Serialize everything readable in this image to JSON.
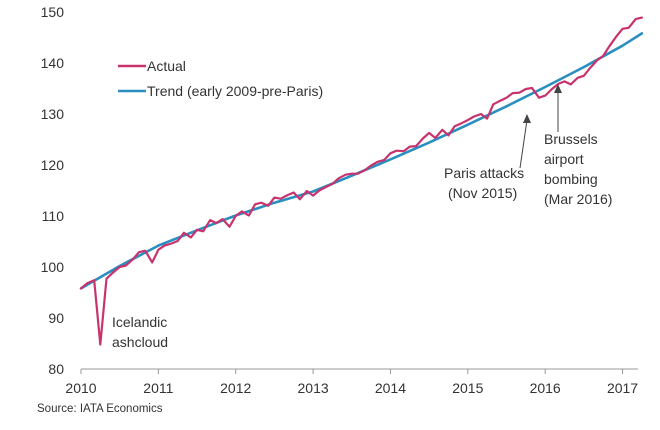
{
  "chart_data": {
    "type": "line",
    "title": "",
    "xlabel": "",
    "ylabel": "",
    "xlim": [
      2010,
      2017.2
    ],
    "ylim": [
      80,
      150
    ],
    "x_ticks": [
      "2010",
      "2011",
      "2012",
      "2013",
      "2014",
      "2015",
      "2016",
      "2017"
    ],
    "y_ticks": [
      "80",
      "90",
      "100",
      "110",
      "120",
      "130",
      "140",
      "150"
    ],
    "grid": false,
    "legend": {
      "placement": "top-left"
    },
    "series": [
      {
        "name": "Actual",
        "color": "#c8336e",
        "points": [
          [
            2010.0,
            95.8
          ],
          [
            2010.08,
            96.8
          ],
          [
            2010.17,
            97.4
          ],
          [
            2010.25,
            84.8
          ],
          [
            2010.33,
            97.7
          ],
          [
            2010.42,
            99.0
          ],
          [
            2010.5,
            100.0
          ],
          [
            2010.58,
            100.3
          ],
          [
            2010.67,
            101.5
          ],
          [
            2010.75,
            102.9
          ],
          [
            2010.83,
            103.2
          ],
          [
            2010.92,
            100.9
          ],
          [
            2011.0,
            103.4
          ],
          [
            2011.08,
            104.2
          ],
          [
            2011.17,
            104.6
          ],
          [
            2011.25,
            105.1
          ],
          [
            2011.33,
            106.7
          ],
          [
            2011.42,
            105.8
          ],
          [
            2011.5,
            107.3
          ],
          [
            2011.58,
            107.0
          ],
          [
            2011.67,
            109.2
          ],
          [
            2011.75,
            108.6
          ],
          [
            2011.83,
            109.4
          ],
          [
            2011.92,
            107.9
          ],
          [
            2012.0,
            110.0
          ],
          [
            2012.08,
            110.9
          ],
          [
            2012.17,
            110.1
          ],
          [
            2012.25,
            112.3
          ],
          [
            2012.33,
            112.6
          ],
          [
            2012.42,
            112.0
          ],
          [
            2012.5,
            113.6
          ],
          [
            2012.58,
            113.4
          ],
          [
            2012.67,
            114.1
          ],
          [
            2012.75,
            114.6
          ],
          [
            2012.83,
            113.3
          ],
          [
            2012.92,
            114.9
          ],
          [
            2013.0,
            114.0
          ],
          [
            2013.08,
            115.0
          ],
          [
            2013.17,
            115.7
          ],
          [
            2013.25,
            116.3
          ],
          [
            2013.33,
            117.4
          ],
          [
            2013.42,
            118.1
          ],
          [
            2013.5,
            118.3
          ],
          [
            2013.58,
            118.3
          ],
          [
            2013.67,
            119.0
          ],
          [
            2013.75,
            119.9
          ],
          [
            2013.83,
            120.6
          ],
          [
            2013.92,
            121.0
          ],
          [
            2014.0,
            122.3
          ],
          [
            2014.08,
            122.8
          ],
          [
            2014.17,
            122.7
          ],
          [
            2014.25,
            123.6
          ],
          [
            2014.33,
            123.7
          ],
          [
            2014.42,
            125.2
          ],
          [
            2014.5,
            126.3
          ],
          [
            2014.58,
            125.3
          ],
          [
            2014.67,
            126.9
          ],
          [
            2014.75,
            125.8
          ],
          [
            2014.83,
            127.6
          ],
          [
            2014.92,
            128.2
          ],
          [
            2015.0,
            128.8
          ],
          [
            2015.08,
            129.5
          ],
          [
            2015.17,
            130.0
          ],
          [
            2015.25,
            129.1
          ],
          [
            2015.33,
            131.9
          ],
          [
            2015.42,
            132.6
          ],
          [
            2015.5,
            133.2
          ],
          [
            2015.58,
            134.1
          ],
          [
            2015.67,
            134.2
          ],
          [
            2015.75,
            134.9
          ],
          [
            2015.83,
            135.1
          ],
          [
            2015.92,
            133.2
          ],
          [
            2016.0,
            133.6
          ],
          [
            2016.08,
            134.8
          ],
          [
            2016.17,
            135.9
          ],
          [
            2016.25,
            136.4
          ],
          [
            2016.33,
            135.8
          ],
          [
            2016.42,
            137.1
          ],
          [
            2016.5,
            137.5
          ],
          [
            2016.58,
            139.0
          ],
          [
            2016.67,
            140.5
          ],
          [
            2016.75,
            141.4
          ],
          [
            2016.83,
            143.3
          ],
          [
            2016.92,
            145.2
          ],
          [
            2017.0,
            146.7
          ],
          [
            2017.08,
            146.9
          ],
          [
            2017.17,
            148.6
          ],
          [
            2017.25,
            148.9
          ]
        ]
      },
      {
        "name": "Trend (early 2009-pre-Paris)",
        "color": "#2a8ec0",
        "points": [
          [
            2010.0,
            95.8
          ],
          [
            2010.5,
            100.2
          ],
          [
            2011.0,
            104.2
          ],
          [
            2011.5,
            107.2
          ],
          [
            2012.0,
            110.1
          ],
          [
            2012.5,
            112.6
          ],
          [
            2013.0,
            114.8
          ],
          [
            2013.5,
            117.9
          ],
          [
            2014.0,
            121.1
          ],
          [
            2014.5,
            124.4
          ],
          [
            2015.0,
            127.9
          ],
          [
            2015.5,
            131.5
          ],
          [
            2016.0,
            135.3
          ],
          [
            2016.5,
            139.2
          ],
          [
            2017.0,
            143.4
          ],
          [
            2017.25,
            145.8
          ]
        ]
      }
    ],
    "annotations": [
      {
        "id": "ashcloud",
        "lines": [
          "Icelandic",
          "ashcloud"
        ],
        "x": 2010.25,
        "y": 84.8
      },
      {
        "id": "paris",
        "lines": [
          "Paris attacks",
          "(Nov 2015)"
        ],
        "x": 2015.83,
        "y": 135.1
      },
      {
        "id": "brussels",
        "lines": [
          "Brussels",
          "airport",
          "bombing",
          "(Mar 2016)"
        ],
        "x": 2016.25,
        "y": 136.4
      }
    ],
    "source": "Source: IATA Economics"
  }
}
